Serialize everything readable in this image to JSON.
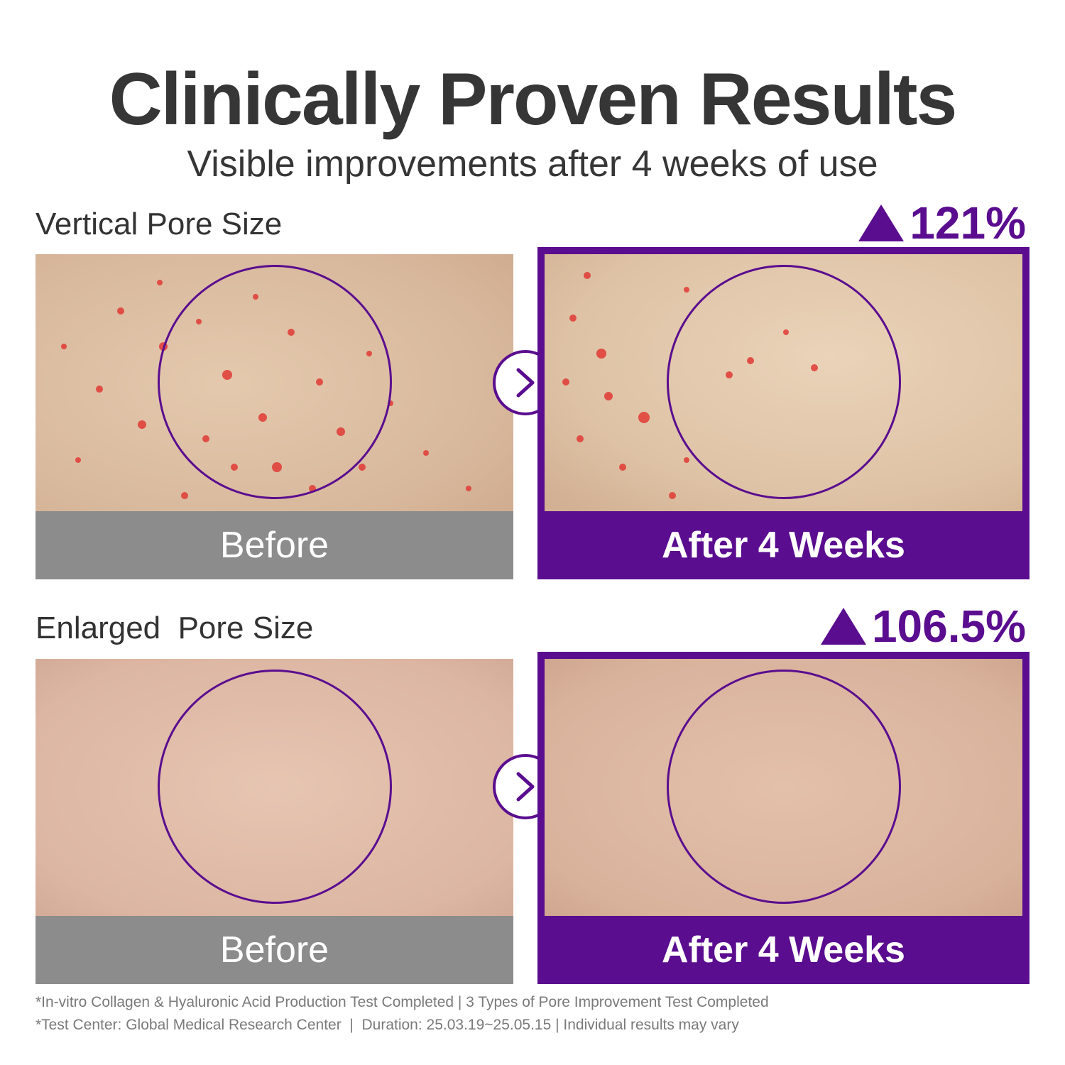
{
  "header": {
    "title": "Clinically Proven Results",
    "subtitle": "Visible improvements after 4 weeks of use"
  },
  "sections": [
    {
      "label": "Vertical Pore Size",
      "improvement": "121%",
      "before_caption": "Before",
      "after_caption": "After 4 Weeks"
    },
    {
      "label": "Enlarged  Pore Size",
      "improvement": "106.5%",
      "before_caption": "Before",
      "after_caption": "After 4 Weeks"
    }
  ],
  "footnotes": [
    "*In-vitro Collagen & Hyaluronic Acid Production Test Completed | 3 Types of Pore Improvement Test Completed",
    "*Test Center: Global Medical Research Center  |  Duration: 25.03.19~25.05.15 | Individual results may vary"
  ],
  "colors": {
    "accent": "#5a0d8f",
    "before_bar": "#8c8c8c",
    "title_text": "#363636"
  },
  "icons": [
    "triangle-up-icon",
    "chevron-right-icon"
  ]
}
